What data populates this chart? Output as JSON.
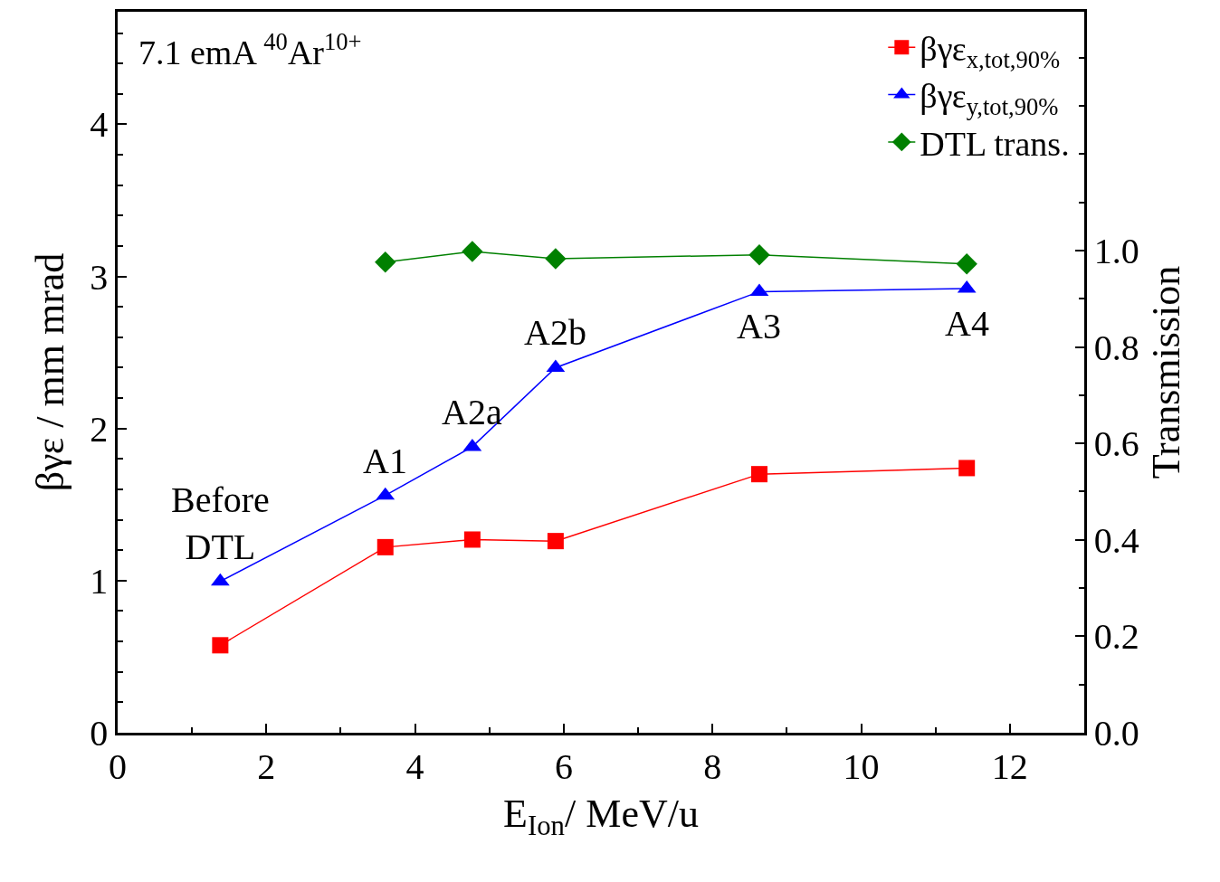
{
  "chart_data": {
    "type": "line",
    "xlabel": "E$_{Ion}$/ MeV/u",
    "ylabel": "βγε / mm mrad",
    "y2label": "Transmission",
    "xlim": [
      0,
      13
    ],
    "xticks": [
      0,
      2,
      4,
      6,
      8,
      10,
      12
    ],
    "ylim": [
      0,
      4.74
    ],
    "yticks": [
      0,
      1,
      2,
      3,
      4
    ],
    "y2lim": [
      0,
      1.495
    ],
    "y2ticks": [
      {
        "value": 0,
        "label": "0.0"
      },
      {
        "value": 0.2,
        "label": "0.2"
      },
      {
        "value": 0.4,
        "label": "0.4"
      },
      {
        "value": 0.6,
        "label": "0.6"
      },
      {
        "value": 0.8,
        "label": "0.8"
      },
      {
        "value": 1,
        "label": "1.0"
      }
    ],
    "legend": "top right",
    "series": [
      {
        "name": "βγε$_{x,tot,90%}$",
        "color": "#ff0000",
        "marker": "square",
        "x": [
          1.38,
          3.6,
          4.77,
          5.89,
          8.63,
          11.42
        ],
        "values": [
          0.575,
          1.22,
          1.27,
          1.26,
          1.7,
          1.74
        ]
      },
      {
        "name": "βγε$_{y,tot,90%}$",
        "color": "#0000ff",
        "marker": "triangle",
        "x": [
          1.38,
          3.6,
          4.77,
          5.89,
          8.63,
          11.42
        ],
        "values": [
          0.995,
          1.56,
          1.88,
          2.4,
          2.9,
          2.92
        ]
      },
      {
        "name": "DTL trans.",
        "color": "#008000",
        "marker": "diamond",
        "axis": "y2",
        "x": [
          3.6,
          4.77,
          5.89,
          8.63,
          11.42
        ],
        "values": [
          0.976,
          0.998,
          0.983,
          0.991,
          0.972
        ]
      }
    ],
    "annotations": [
      "7.1 emA $^{40}$Ar$^{10+}$",
      {
        "text": "Before\nDTL",
        "x": 1.38,
        "y": 0.995
      },
      {
        "text": "A1",
        "x": 3.6,
        "y": 1.56
      },
      {
        "text": "A2a",
        "x": 4.77,
        "y": 1.88
      },
      {
        "text": "A2b",
        "x": 5.89,
        "y": 2.4
      },
      {
        "text": "A3",
        "x": 8.63,
        "y": 2.9
      },
      {
        "text": "A4",
        "x": 11.42,
        "y": 2.92
      }
    ]
  }
}
